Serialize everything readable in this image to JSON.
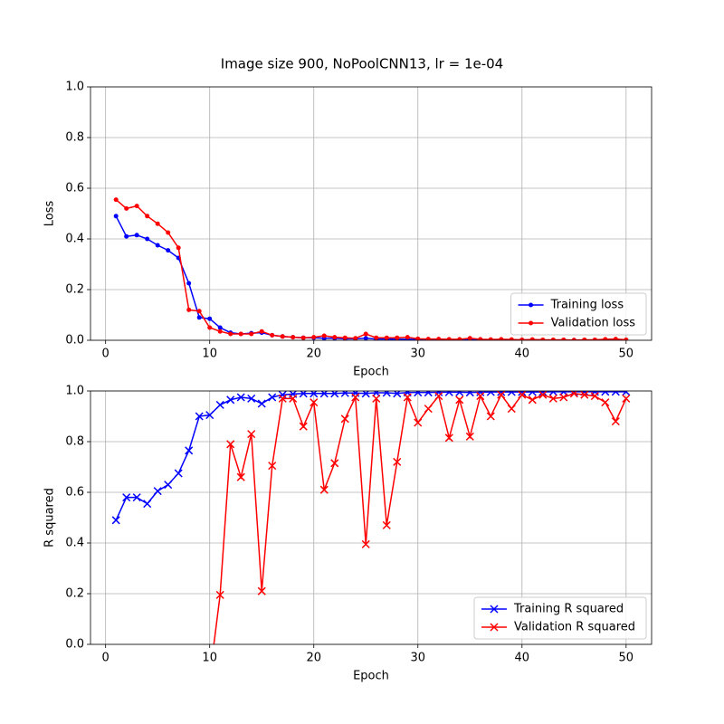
{
  "title": "Image size 900, NoPoolCNN13, lr = 1e-04",
  "chart_data": [
    {
      "type": "line",
      "xlabel": "Epoch",
      "ylabel": "Loss",
      "marker": "dot",
      "grid": true,
      "legend": "lower right",
      "x": [
        1,
        2,
        3,
        4,
        5,
        6,
        7,
        8,
        9,
        10,
        11,
        12,
        13,
        14,
        15,
        16,
        17,
        18,
        19,
        20,
        21,
        22,
        23,
        24,
        25,
        26,
        27,
        28,
        29,
        30,
        31,
        32,
        33,
        34,
        35,
        36,
        37,
        38,
        39,
        40,
        41,
        42,
        43,
        44,
        45,
        46,
        47,
        48,
        49,
        50
      ],
      "xlim": [
        -1.45,
        52.45
      ],
      "xticks": [
        0,
        10,
        20,
        30,
        40,
        50
      ],
      "ylim": [
        0,
        1
      ],
      "yticks": [
        {
          "value": 0,
          "label": "0.0"
        },
        {
          "value": 0.2,
          "label": "0.2"
        },
        {
          "value": 0.4,
          "label": "0.4"
        },
        {
          "value": 0.6,
          "label": "0.6"
        },
        {
          "value": 0.8,
          "label": "0.8"
        },
        {
          "value": 1,
          "label": "1.0"
        }
      ],
      "series": [
        {
          "name": "Training loss",
          "color": "#0000ff",
          "values": [
            0.49,
            0.41,
            0.415,
            0.4,
            0.375,
            0.355,
            0.325,
            0.225,
            0.09,
            0.085,
            0.05,
            0.03,
            0.025,
            0.028,
            0.03,
            0.02,
            0.015,
            0.012,
            0.01,
            0.01,
            0.008,
            0.008,
            0.006,
            0.006,
            0.008,
            0.005,
            0.005,
            0.004,
            0.004,
            0.003,
            0.003,
            0.003,
            0.002,
            0.002,
            0.003,
            0.002,
            0.002,
            0.002,
            0.002,
            0.001,
            0.002,
            0.001,
            0.001,
            0.001,
            0.001,
            0.001,
            0.001,
            0.001,
            0.001,
            0.001
          ]
        },
        {
          "name": "Validation loss",
          "color": "#ff0000",
          "values": [
            0.555,
            0.52,
            0.53,
            0.49,
            0.46,
            0.425,
            0.365,
            0.12,
            0.115,
            0.05,
            0.035,
            0.025,
            0.025,
            0.025,
            0.035,
            0.02,
            0.015,
            0.012,
            0.01,
            0.012,
            0.018,
            0.012,
            0.01,
            0.008,
            0.025,
            0.01,
            0.01,
            0.01,
            0.012,
            0.006,
            0.005,
            0.005,
            0.004,
            0.004,
            0.008,
            0.004,
            0.003,
            0.004,
            0.003,
            0.002,
            0.003,
            0.002,
            0.002,
            0.002,
            0.001,
            0.002,
            0.002,
            0.004,
            0.005,
            0.002
          ]
        }
      ]
    },
    {
      "type": "line",
      "xlabel": "Epoch",
      "ylabel": "R squared",
      "marker": "x",
      "grid": true,
      "legend": "lower right",
      "x": [
        1,
        2,
        3,
        4,
        5,
        6,
        7,
        8,
        9,
        10,
        11,
        12,
        13,
        14,
        15,
        16,
        17,
        18,
        19,
        20,
        21,
        22,
        23,
        24,
        25,
        26,
        27,
        28,
        29,
        30,
        31,
        32,
        33,
        34,
        35,
        36,
        37,
        38,
        39,
        40,
        41,
        42,
        43,
        44,
        45,
        46,
        47,
        48,
        49,
        50
      ],
      "xlim": [
        -1.45,
        52.45
      ],
      "xticks": [
        0,
        10,
        20,
        30,
        40,
        50
      ],
      "ylim": [
        0,
        1
      ],
      "yticks": [
        {
          "value": 0,
          "label": "0.0"
        },
        {
          "value": 0.2,
          "label": "0.2"
        },
        {
          "value": 0.4,
          "label": "0.4"
        },
        {
          "value": 0.6,
          "label": "0.6"
        },
        {
          "value": 0.8,
          "label": "0.8"
        },
        {
          "value": 1,
          "label": "1.0"
        }
      ],
      "series": [
        {
          "name": "Training R squared",
          "color": "#0000ff",
          "values": [
            0.49,
            0.58,
            0.58,
            0.555,
            0.605,
            0.63,
            0.675,
            0.765,
            0.9,
            0.905,
            0.945,
            0.965,
            0.975,
            0.97,
            0.95,
            0.975,
            0.985,
            0.988,
            0.99,
            0.99,
            0.99,
            0.99,
            0.992,
            0.992,
            0.99,
            0.993,
            0.993,
            0.99,
            0.994,
            0.994,
            0.994,
            0.995,
            0.995,
            0.995,
            0.994,
            0.995,
            0.996,
            0.996,
            0.996,
            0.996,
            0.996,
            0.996,
            0.997,
            0.997,
            0.997,
            0.997,
            0.997,
            0.997,
            0.997,
            0.997
          ]
        },
        {
          "name": "Validation R squared",
          "color": "#ff0000",
          "values": [
            null,
            null,
            null,
            null,
            null,
            null,
            null,
            null,
            null,
            -0.13,
            0.195,
            0.79,
            0.66,
            0.83,
            0.21,
            0.705,
            0.97,
            0.97,
            0.86,
            0.955,
            0.61,
            0.715,
            0.89,
            0.975,
            0.395,
            0.97,
            0.47,
            0.72,
            0.975,
            0.875,
            0.93,
            0.98,
            0.815,
            0.965,
            0.82,
            0.98,
            0.9,
            0.985,
            0.93,
            0.985,
            0.965,
            0.985,
            0.97,
            0.975,
            0.99,
            0.985,
            0.98,
            0.955,
            0.88,
            0.97
          ]
        }
      ]
    }
  ]
}
